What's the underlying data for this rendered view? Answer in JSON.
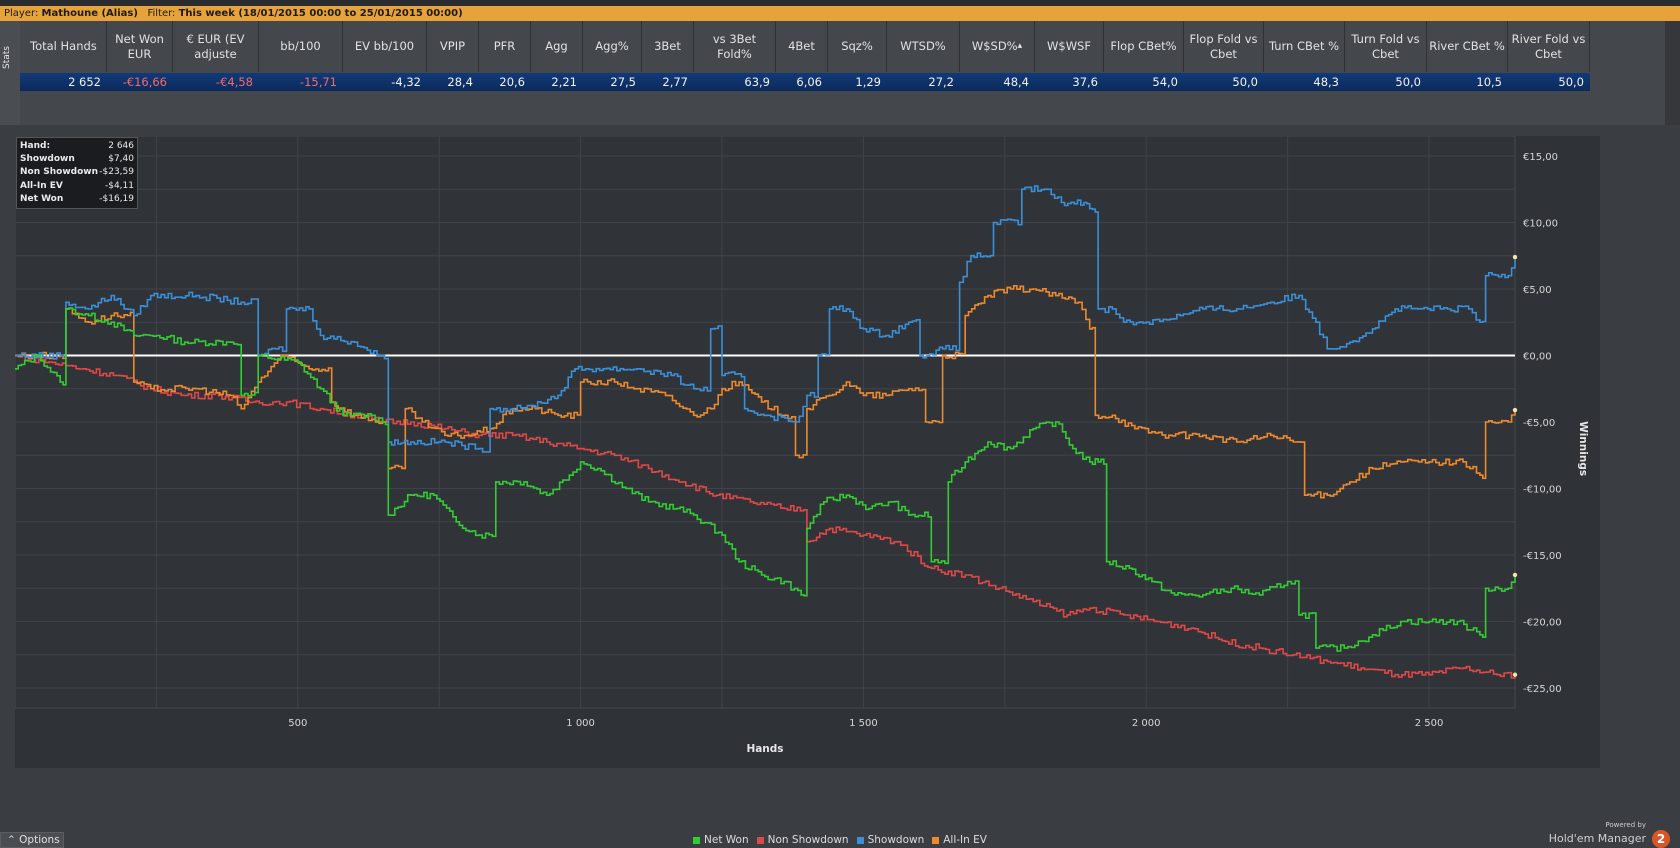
{
  "filter_bar": {
    "player_label": "Player:",
    "player": "Mathoune (Alias)",
    "filter_label": "Filter:",
    "filter": "This week (18/01/2015 00:00 to 25/01/2015 00:00)"
  },
  "stats_tab": {
    "label": "Stats"
  },
  "stats_table": {
    "headers": [
      "Total Hands",
      "Net Won EUR",
      "€ EUR (EV adjuste",
      "bb/100",
      "EV bb/100",
      "VPIP",
      "PFR",
      "Agg",
      "Agg%",
      "3Bet",
      "vs 3Bet Fold%",
      "4Bet",
      "Sqz%",
      "WTSD%",
      "W$SD%",
      "W$WSF",
      "Flop CBet%",
      "Flop Fold vs Cbet",
      "Turn CBet %",
      "Turn Fold vs Cbet",
      "River CBet %",
      "River Fold vs Cbet"
    ],
    "values": [
      "2 652",
      "-€16,66",
      "-€4,58",
      "-15,71",
      "-4,32",
      "28,4",
      "20,6",
      "2,21",
      "27,5",
      "2,77",
      "63,9",
      "6,06",
      "1,29",
      "27,2",
      "48,4",
      "37,6",
      "54,0",
      "50,0",
      "48,3",
      "50,0",
      "10,5",
      "50,0"
    ],
    "negative": [
      false,
      true,
      true,
      true,
      false,
      false,
      false,
      false,
      false,
      false,
      false,
      false,
      false,
      false,
      false,
      false,
      false,
      false,
      false,
      false,
      false,
      false
    ],
    "sort_column": "W$SD%"
  },
  "tooltip": {
    "rows": [
      {
        "key": "Hand:",
        "value": "2 646"
      },
      {
        "key": "Showdown",
        "value": "$7,40"
      },
      {
        "key": "Non Showdown",
        "value": "-$23,59"
      },
      {
        "key": "All-In EV",
        "value": "-$4,11"
      },
      {
        "key": "Net Won",
        "value": "-$16,19"
      }
    ]
  },
  "legend": {
    "items": [
      {
        "label": "Net Won",
        "color": "#33cc33"
      },
      {
        "label": "Non Showdown",
        "color": "#e04848"
      },
      {
        "label": "Showdown",
        "color": "#3a8fd8"
      },
      {
        "label": "All-In EV",
        "color": "#ee8a2c"
      }
    ]
  },
  "options_button": {
    "label": "Options"
  },
  "branding": {
    "powered_by": "Powered by",
    "product": "Hold'em Manager",
    "logo_text": "2"
  },
  "chart_data": {
    "type": "line",
    "xlabel": "Hands",
    "ylabel": "Winnings",
    "xlim": [
      0,
      2652
    ],
    "ylim": [
      -26.5,
      16.5
    ],
    "x_ticks": [
      500,
      1000,
      1500,
      2000,
      2500
    ],
    "x_tick_labels": [
      "500",
      "1 000",
      "1 500",
      "2 000",
      "2 500"
    ],
    "y_ticks": [
      15,
      10,
      5,
      0,
      -5,
      -10,
      -15,
      -20,
      -25
    ],
    "y_tick_labels": [
      "€15,00",
      "€10,00",
      "€5,00",
      "€0,00",
      "-€5,00",
      "-€10,00",
      "-€15,00",
      "-€20,00",
      "-€25,00"
    ],
    "grid": true,
    "zero_line": true,
    "series": [
      {
        "name": "Net Won",
        "color": "#33cc33",
        "points": [
          [
            0,
            -1
          ],
          [
            40,
            0
          ],
          [
            80,
            -2
          ],
          [
            90,
            3.5
          ],
          [
            130,
            3
          ],
          [
            170,
            2.5
          ],
          [
            210,
            1.5
          ],
          [
            250,
            1.5
          ],
          [
            300,
            1
          ],
          [
            380,
            1
          ],
          [
            400,
            -3
          ],
          [
            430,
            0
          ],
          [
            500,
            -0.5
          ],
          [
            540,
            -2.5
          ],
          [
            580,
            -4.5
          ],
          [
            630,
            -4.5
          ],
          [
            650,
            -5
          ],
          [
            660,
            -12
          ],
          [
            700,
            -10.5
          ],
          [
            740,
            -10.5
          ],
          [
            780,
            -12.5
          ],
          [
            820,
            -13.5
          ],
          [
            850,
            -9.5
          ],
          [
            900,
            -9.5
          ],
          [
            940,
            -10.5
          ],
          [
            980,
            -9
          ],
          [
            1000,
            -8
          ],
          [
            1030,
            -8.5
          ],
          [
            1080,
            -10
          ],
          [
            1120,
            -11
          ],
          [
            1170,
            -11.5
          ],
          [
            1200,
            -12
          ],
          [
            1250,
            -13.5
          ],
          [
            1280,
            -15.5
          ],
          [
            1320,
            -16.5
          ],
          [
            1360,
            -17
          ],
          [
            1390,
            -18
          ],
          [
            1400,
            -13
          ],
          [
            1430,
            -11
          ],
          [
            1470,
            -10.5
          ],
          [
            1510,
            -11.5
          ],
          [
            1550,
            -11
          ],
          [
            1580,
            -12
          ],
          [
            1620,
            -15.5
          ],
          [
            1650,
            -9.5
          ],
          [
            1680,
            -8
          ],
          [
            1720,
            -6.5
          ],
          [
            1760,
            -7
          ],
          [
            1800,
            -5.5
          ],
          [
            1840,
            -5
          ],
          [
            1870,
            -7
          ],
          [
            1900,
            -8
          ],
          [
            1915,
            -8
          ],
          [
            1930,
            -15.5
          ],
          [
            1970,
            -16
          ],
          [
            2010,
            -17
          ],
          [
            2050,
            -18
          ],
          [
            2100,
            -18
          ],
          [
            2150,
            -17.5
          ],
          [
            2200,
            -18
          ],
          [
            2250,
            -17
          ],
          [
            2270,
            -19.5
          ],
          [
            2300,
            -22
          ],
          [
            2350,
            -22
          ],
          [
            2400,
            -21
          ],
          [
            2450,
            -20
          ],
          [
            2500,
            -20
          ],
          [
            2550,
            -20
          ],
          [
            2590,
            -21
          ],
          [
            2600,
            -17.5
          ],
          [
            2640,
            -17.5
          ],
          [
            2652,
            -16.5
          ]
        ]
      },
      {
        "name": "Non Showdown",
        "color": "#e04848",
        "points": [
          [
            0,
            0
          ],
          [
            60,
            -0.5
          ],
          [
            120,
            -1
          ],
          [
            180,
            -1.5
          ],
          [
            240,
            -2.5
          ],
          [
            300,
            -3
          ],
          [
            360,
            -3
          ],
          [
            420,
            -3.5
          ],
          [
            480,
            -3.5
          ],
          [
            540,
            -4
          ],
          [
            600,
            -4.5
          ],
          [
            650,
            -5
          ],
          [
            700,
            -5
          ],
          [
            760,
            -5.5
          ],
          [
            820,
            -6
          ],
          [
            880,
            -6
          ],
          [
            940,
            -6.5
          ],
          [
            1000,
            -7
          ],
          [
            1060,
            -7.5
          ],
          [
            1120,
            -8.5
          ],
          [
            1180,
            -9.5
          ],
          [
            1240,
            -10.5
          ],
          [
            1300,
            -11
          ],
          [
            1360,
            -11.5
          ],
          [
            1400,
            -14
          ],
          [
            1440,
            -13
          ],
          [
            1500,
            -13.5
          ],
          [
            1560,
            -14
          ],
          [
            1620,
            -16
          ],
          [
            1680,
            -16.5
          ],
          [
            1740,
            -17.5
          ],
          [
            1800,
            -18.5
          ],
          [
            1860,
            -19.5
          ],
          [
            1900,
            -19
          ],
          [
            1960,
            -19.5
          ],
          [
            2020,
            -20
          ],
          [
            2080,
            -20.5
          ],
          [
            2140,
            -21.5
          ],
          [
            2200,
            -22
          ],
          [
            2260,
            -22.5
          ],
          [
            2320,
            -23
          ],
          [
            2380,
            -23.5
          ],
          [
            2440,
            -24
          ],
          [
            2500,
            -24
          ],
          [
            2560,
            -23.5
          ],
          [
            2620,
            -24
          ],
          [
            2652,
            -24
          ]
        ]
      },
      {
        "name": "Showdown",
        "color": "#3a8fd8",
        "points": [
          [
            0,
            0
          ],
          [
            80,
            0
          ],
          [
            90,
            4
          ],
          [
            130,
            3.5
          ],
          [
            170,
            4.5
          ],
          [
            210,
            3
          ],
          [
            240,
            4.5
          ],
          [
            320,
            4.5
          ],
          [
            400,
            4
          ],
          [
            430,
            0
          ],
          [
            460,
            0.5
          ],
          [
            480,
            3.5
          ],
          [
            520,
            3.5
          ],
          [
            540,
            1.5
          ],
          [
            600,
            1
          ],
          [
            640,
            0
          ],
          [
            660,
            -6.5
          ],
          [
            700,
            -6.5
          ],
          [
            760,
            -6.5
          ],
          [
            820,
            -7
          ],
          [
            840,
            -4
          ],
          [
            900,
            -4
          ],
          [
            960,
            -3
          ],
          [
            990,
            -1
          ],
          [
            1040,
            -1
          ],
          [
            1100,
            -1
          ],
          [
            1160,
            -1.5
          ],
          [
            1200,
            -2.5
          ],
          [
            1230,
            2
          ],
          [
            1250,
            -1.5
          ],
          [
            1290,
            -4
          ],
          [
            1330,
            -4.5
          ],
          [
            1380,
            -5
          ],
          [
            1400,
            -3
          ],
          [
            1420,
            0
          ],
          [
            1440,
            3.5
          ],
          [
            1470,
            3.5
          ],
          [
            1500,
            2
          ],
          [
            1540,
            1.5
          ],
          [
            1580,
            2.5
          ],
          [
            1600,
            0
          ],
          [
            1640,
            0.5
          ],
          [
            1670,
            5.5
          ],
          [
            1690,
            7.5
          ],
          [
            1730,
            10
          ],
          [
            1780,
            12.5
          ],
          [
            1820,
            12.5
          ],
          [
            1850,
            11.5
          ],
          [
            1890,
            11.5
          ],
          [
            1905,
            11
          ],
          [
            1915,
            3.5
          ],
          [
            1940,
            3.5
          ],
          [
            1960,
            2.5
          ],
          [
            2000,
            2.5
          ],
          [
            2060,
            3
          ],
          [
            2100,
            3.5
          ],
          [
            2160,
            3.5
          ],
          [
            2220,
            4
          ],
          [
            2270,
            4.5
          ],
          [
            2300,
            2.5
          ],
          [
            2320,
            0.5
          ],
          [
            2360,
            1
          ],
          [
            2400,
            2
          ],
          [
            2440,
            3.5
          ],
          [
            2480,
            3.5
          ],
          [
            2520,
            3.5
          ],
          [
            2570,
            3.5
          ],
          [
            2590,
            2.5
          ],
          [
            2600,
            6
          ],
          [
            2640,
            6
          ],
          [
            2652,
            7.4
          ]
        ]
      },
      {
        "name": "All-In EV",
        "color": "#ee8a2c",
        "points": [
          [
            0,
            0
          ],
          [
            80,
            0
          ],
          [
            90,
            3.5
          ],
          [
            130,
            2.5
          ],
          [
            170,
            3
          ],
          [
            210,
            -2
          ],
          [
            240,
            -2.5
          ],
          [
            320,
            -2.5
          ],
          [
            380,
            -3
          ],
          [
            400,
            -4
          ],
          [
            430,
            -2
          ],
          [
            470,
            0
          ],
          [
            520,
            -1
          ],
          [
            560,
            -3.5
          ],
          [
            600,
            -4.5
          ],
          [
            650,
            -5
          ],
          [
            660,
            -8.5
          ],
          [
            690,
            -4
          ],
          [
            720,
            -5
          ],
          [
            760,
            -6
          ],
          [
            800,
            -6
          ],
          [
            840,
            -5.5
          ],
          [
            880,
            -4
          ],
          [
            920,
            -4
          ],
          [
            960,
            -4.5
          ],
          [
            1000,
            -2
          ],
          [
            1060,
            -2
          ],
          [
            1100,
            -2.5
          ],
          [
            1150,
            -3
          ],
          [
            1200,
            -4.5
          ],
          [
            1230,
            -4
          ],
          [
            1250,
            -2.5
          ],
          [
            1280,
            -2
          ],
          [
            1320,
            -3.5
          ],
          [
            1360,
            -4.5
          ],
          [
            1380,
            -7.5
          ],
          [
            1400,
            -4
          ],
          [
            1440,
            -3
          ],
          [
            1470,
            -2
          ],
          [
            1500,
            -3
          ],
          [
            1540,
            -3
          ],
          [
            1580,
            -2.5
          ],
          [
            1610,
            -5
          ],
          [
            1640,
            0
          ],
          [
            1680,
            3
          ],
          [
            1720,
            4.5
          ],
          [
            1760,
            5
          ],
          [
            1800,
            5
          ],
          [
            1840,
            4.5
          ],
          [
            1880,
            4
          ],
          [
            1900,
            2
          ],
          [
            1910,
            -4.5
          ],
          [
            1940,
            -4.5
          ],
          [
            1980,
            -5.5
          ],
          [
            2040,
            -6
          ],
          [
            2100,
            -6
          ],
          [
            2160,
            -6.5
          ],
          [
            2220,
            -6
          ],
          [
            2260,
            -6.5
          ],
          [
            2280,
            -10.5
          ],
          [
            2320,
            -10.5
          ],
          [
            2360,
            -9.5
          ],
          [
            2400,
            -8.5
          ],
          [
            2450,
            -8
          ],
          [
            2500,
            -8
          ],
          [
            2560,
            -8
          ],
          [
            2590,
            -9
          ],
          [
            2600,
            -5
          ],
          [
            2640,
            -5
          ],
          [
            2652,
            -4.1
          ]
        ]
      }
    ]
  }
}
